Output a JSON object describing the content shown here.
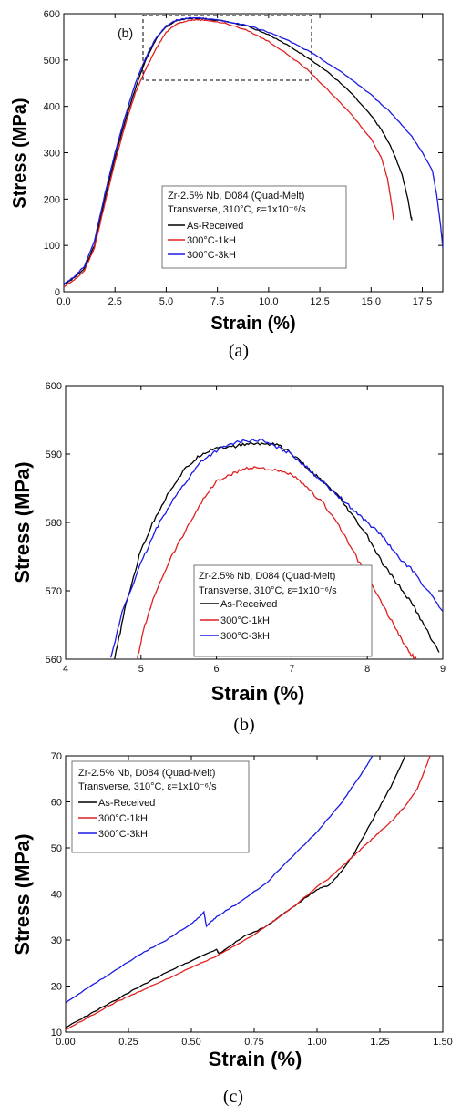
{
  "chart_data": [
    {
      "type": "line",
      "xlabel": "Strain (%)",
      "ylabel": "Stress (MPa)",
      "xlim": [
        0,
        18.5
      ],
      "ylim": [
        0,
        600
      ],
      "xticks": [
        "0.0",
        "2.5",
        "5.0",
        "7.5",
        "10.0",
        "12.5",
        "15.0",
        "17.5"
      ],
      "yticks": [
        "0",
        "100",
        "200",
        "300",
        "400",
        "500",
        "600"
      ],
      "legend_title_line1": "Zr-2.5% Nb, D084 (Quad-Melt)",
      "legend_title_line2": "Transverse, 310°C, ε=1x10⁻⁶/s",
      "legend_placement": "center-right",
      "inset_label": "(b)",
      "caption": "(a)",
      "series": [
        {
          "name": "As-Received",
          "color": "#000000",
          "x": [
            0,
            0.5,
            1.0,
            1.5,
            2.0,
            2.5,
            3.0,
            3.5,
            4.0,
            4.5,
            5.0,
            5.5,
            6.0,
            6.5,
            7.0,
            8.0,
            9.0,
            10.0,
            11.0,
            12.0,
            13.0,
            14.0,
            15.0,
            15.5,
            16.0,
            16.5,
            16.8,
            16.95,
            17.0
          ],
          "y": [
            15,
            30,
            50,
            100,
            200,
            290,
            370,
            440,
            500,
            545,
            572,
            585,
            589,
            590,
            589,
            583,
            573,
            555,
            530,
            503,
            470,
            430,
            380,
            350,
            310,
            255,
            200,
            160,
            155
          ]
        },
        {
          "name": "300°C-1kH",
          "color": "#e02020",
          "x": [
            0,
            0.5,
            1.0,
            1.5,
            2.0,
            2.5,
            3.0,
            3.5,
            4.0,
            4.5,
            5.0,
            5.5,
            6.0,
            6.5,
            7.0,
            8.0,
            9.0,
            10.0,
            11.0,
            12.0,
            13.0,
            14.0,
            15.0,
            15.5,
            15.8,
            16.0,
            16.1
          ],
          "y": [
            10,
            25,
            45,
            95,
            190,
            280,
            360,
            430,
            480,
            525,
            560,
            578,
            585,
            587,
            586,
            578,
            563,
            540,
            510,
            475,
            430,
            385,
            330,
            290,
            245,
            190,
            155
          ]
        },
        {
          "name": "300°C-3kH",
          "color": "#1a1ae6",
          "x": [
            0,
            0.5,
            1.0,
            1.5,
            2.0,
            2.5,
            3.0,
            3.5,
            4.0,
            4.5,
            5.0,
            5.5,
            6.0,
            6.5,
            7.0,
            8.0,
            9.0,
            10.0,
            11.0,
            12.0,
            13.0,
            14.0,
            15.0,
            16.0,
            17.0,
            17.5,
            18.0,
            18.2,
            18.4,
            18.5
          ],
          "y": [
            17,
            32,
            55,
            110,
            210,
            300,
            380,
            450,
            505,
            548,
            574,
            586,
            590,
            591,
            589,
            583,
            574,
            560,
            541,
            518,
            490,
            460,
            425,
            385,
            335,
            300,
            260,
            210,
            140,
            95
          ]
        }
      ]
    },
    {
      "type": "line",
      "xlabel": "Strain (%)",
      "ylabel": "Stress (MPa)",
      "xlim": [
        4,
        9
      ],
      "ylim": [
        560,
        600
      ],
      "xticks": [
        "4",
        "5",
        "6",
        "7",
        "8",
        "9"
      ],
      "yticks": [
        "560",
        "570",
        "580",
        "590",
        "600"
      ],
      "legend_title_line1": "Zr-2.5% Nb, D084 (Quad-Melt)",
      "legend_title_line2": "Transverse, 310°C, ε=1x10⁻⁶/s",
      "legend_placement": "bottom-center",
      "caption": "(b)",
      "series": [
        {
          "name": "As-Received",
          "color": "#000000",
          "x": [
            4.65,
            4.8,
            5.0,
            5.2,
            5.4,
            5.6,
            5.8,
            6.0,
            6.2,
            6.4,
            6.6,
            6.8,
            7.0,
            7.2,
            7.4,
            7.6,
            7.8,
            8.0,
            8.2,
            8.4,
            8.6,
            8.8,
            8.95
          ],
          "y": [
            560,
            568,
            576,
            581,
            585,
            588,
            590,
            591,
            591,
            591.5,
            591.5,
            591.5,
            590,
            588,
            586,
            584,
            581,
            578,
            574,
            571,
            568,
            564,
            561
          ]
        },
        {
          "name": "300°C-1kH",
          "color": "#e02020",
          "x": [
            4.95,
            5.05,
            5.2,
            5.4,
            5.6,
            5.8,
            6.0,
            6.2,
            6.4,
            6.6,
            6.8,
            7.0,
            7.2,
            7.4,
            7.6,
            7.8,
            8.0,
            8.2,
            8.4,
            8.55,
            8.65
          ],
          "y": [
            560,
            565,
            570,
            575,
            579,
            583,
            586,
            587,
            588,
            588,
            587.5,
            587,
            585,
            583,
            580,
            576,
            572,
            568,
            564,
            561,
            560
          ]
        },
        {
          "name": "300°C-3kH",
          "color": "#1a1ae6",
          "x": [
            4.6,
            4.75,
            5.0,
            5.2,
            5.4,
            5.6,
            5.8,
            6.0,
            6.2,
            6.4,
            6.6,
            6.8,
            7.0,
            7.2,
            7.4,
            7.6,
            7.8,
            8.0,
            8.2,
            8.4,
            8.6,
            8.8,
            9.0
          ],
          "y": [
            560,
            567,
            574,
            579,
            583,
            586,
            589,
            590.5,
            591.5,
            592,
            592,
            591,
            590,
            588,
            586,
            584,
            582,
            580,
            578,
            575,
            573,
            570,
            567
          ]
        }
      ]
    },
    {
      "type": "line",
      "xlabel": "Strain (%)",
      "ylabel": "Stress (MPa)",
      "xlim": [
        0,
        1.5
      ],
      "ylim": [
        10,
        70
      ],
      "xticks": [
        "0.00",
        "0.25",
        "0.50",
        "0.75",
        "1.00",
        "1.25",
        "1.50"
      ],
      "yticks": [
        "10",
        "20",
        "30",
        "40",
        "50",
        "60",
        "70"
      ],
      "legend_title_line1": "Zr-2.5% Nb, D084 (Quad-Melt)",
      "legend_title_line2": "Transverse, 310°C, ε=1x10⁻⁶/s",
      "legend_placement": "top-left",
      "caption": "(c)",
      "series": [
        {
          "name": "As-Received",
          "color": "#000000",
          "x": [
            0.0,
            0.1,
            0.2,
            0.3,
            0.4,
            0.5,
            0.6,
            0.61,
            0.7,
            0.8,
            0.85,
            0.9,
            1.0,
            1.05,
            1.1,
            1.15,
            1.2,
            1.25,
            1.3,
            1.35
          ],
          "y": [
            11,
            14,
            17,
            20,
            23,
            25.5,
            28,
            27,
            30.5,
            33,
            35,
            37,
            41,
            42,
            45,
            49,
            54,
            59,
            64,
            70
          ]
        },
        {
          "name": "300°C-1kH",
          "color": "#e02020",
          "x": [
            0.0,
            0.1,
            0.2,
            0.3,
            0.4,
            0.5,
            0.6,
            0.7,
            0.8,
            0.9,
            1.0,
            1.05,
            1.1,
            1.15,
            1.2,
            1.25,
            1.3,
            1.35,
            1.4,
            1.45
          ],
          "y": [
            10.5,
            13.5,
            16.5,
            19,
            21.5,
            24,
            26.5,
            29.5,
            33,
            37,
            41.5,
            43.5,
            46,
            48.5,
            51,
            53.5,
            56,
            59,
            63,
            70
          ]
        },
        {
          "name": "300°C-3kH",
          "color": "#1a1ae6",
          "x": [
            0.0,
            0.1,
            0.2,
            0.3,
            0.4,
            0.5,
            0.55,
            0.56,
            0.6,
            0.7,
            0.8,
            0.9,
            1.0,
            1.1,
            1.15,
            1.2,
            1.22
          ],
          "y": [
            16.5,
            20,
            23.5,
            27,
            30,
            33.5,
            36,
            33,
            35,
            38.5,
            42.5,
            48,
            53.5,
            60,
            64,
            68,
            70
          ]
        }
      ]
    }
  ]
}
